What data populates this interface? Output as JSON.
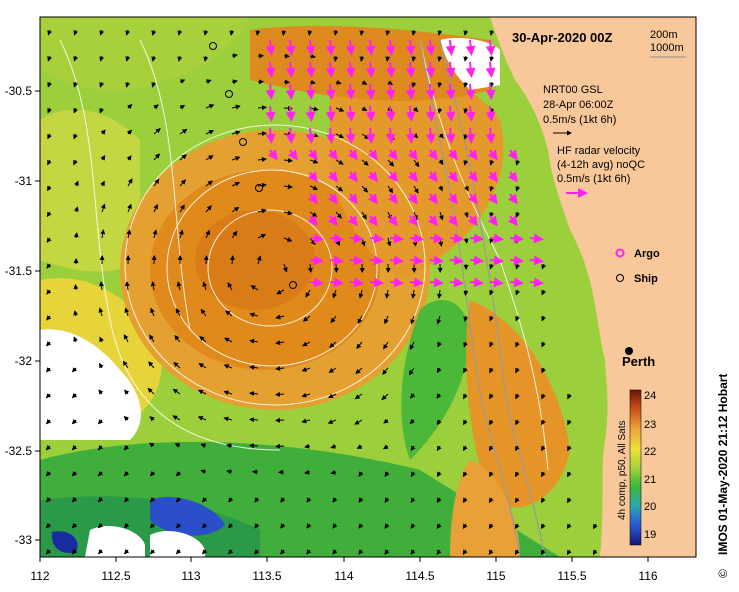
{
  "map": {
    "date_title": "30-Apr-2020 00Z",
    "depth_contours": [
      "200m",
      "1000m"
    ],
    "altimetry_legend": {
      "line1": "NRT00 GSL",
      "line2": "28-Apr 06:00Z",
      "line3": "0.5m/s (1kt 6h)"
    },
    "radar_legend": {
      "line1": "HF radar velocity",
      "line2": "(4-12h avg) noQC",
      "line3": "0.5m/s (1kt 6h)"
    },
    "argo_label": "Argo",
    "ship_label": "Ship",
    "city_label": "Perth",
    "colorbar_caption": "4h comp, p50, All Sats",
    "colorbar_ticks": [
      "24",
      "23",
      "22",
      "21",
      "20",
      "19"
    ],
    "credit": "IMOS 01-May-2020 21:12 Hobart",
    "x_ticks": [
      "112",
      "112.5",
      "113",
      "113.5",
      "114",
      "114.5",
      "115",
      "115.5",
      "116"
    ],
    "y_ticks": [
      "-30.5",
      "-31",
      "-31.5",
      "-32",
      "-32.5",
      "-33"
    ],
    "colors": {
      "land": "#f9c89a",
      "warm": "#e08a1c",
      "cool": "#4cb83a",
      "radar_arrow": "#ff33ff",
      "cloud": "#ffffff"
    }
  }
}
